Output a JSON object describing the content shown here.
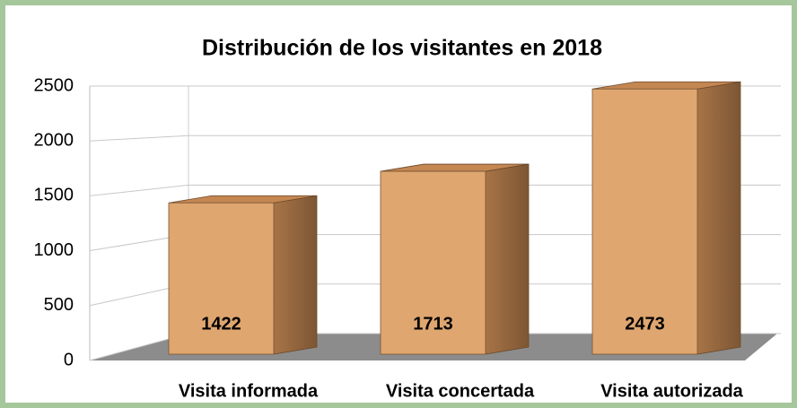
{
  "chart_data": {
    "type": "bar3d",
    "title": "Distribución de los visitantes en 2018",
    "categories": [
      "Visita informada",
      "Visita concertada",
      "Visita autorizada"
    ],
    "values": [
      1422,
      1713,
      2473
    ],
    "color": "#dfa670",
    "ylim": [
      0,
      2500
    ],
    "yticks": [
      0,
      500,
      1000,
      1500,
      2000,
      2500
    ],
    "grid": true
  }
}
